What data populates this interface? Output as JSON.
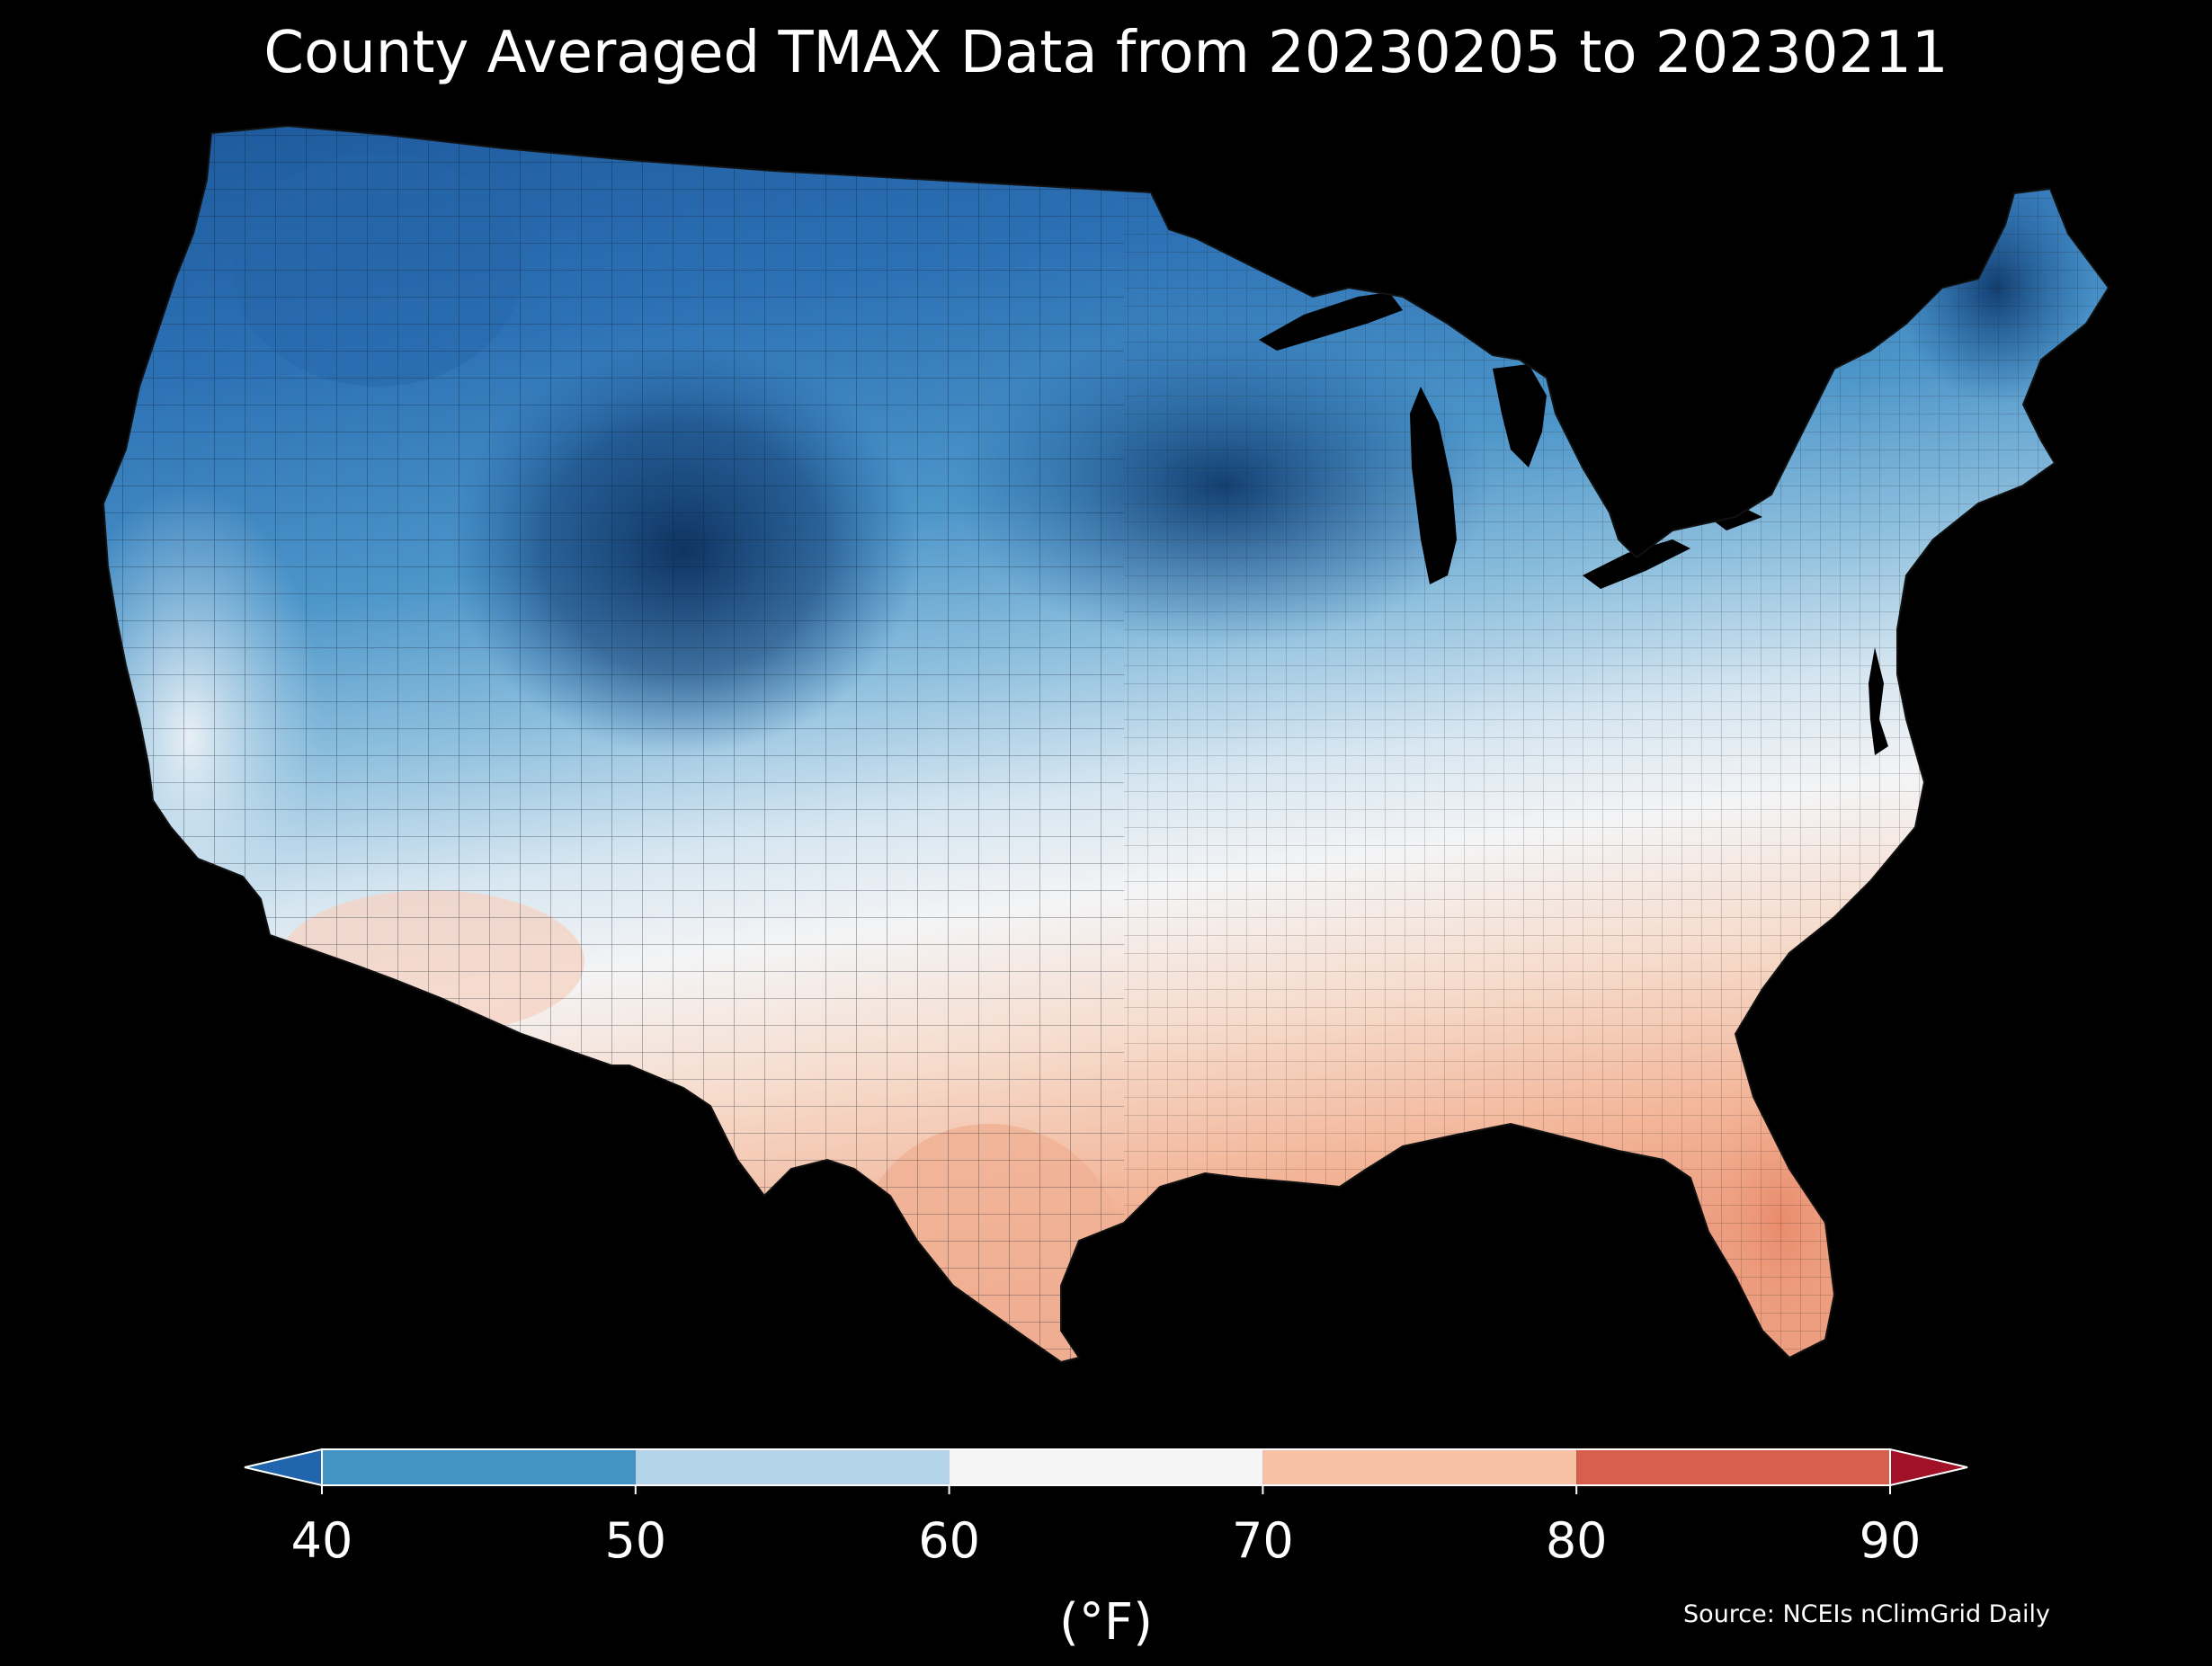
{
  "title": "County Averaged TMAX Data from 20230205 to 20230211",
  "source": "Source: NCEIs nClimGrid Daily",
  "colorbar": {
    "unit": "(°F)",
    "ticks": [
      "40",
      "50",
      "60",
      "70",
      "80",
      "90"
    ],
    "bins": [
      {
        "range": "<40",
        "color": "#2166ac"
      },
      {
        "range": "40-50",
        "color": "#4393c3"
      },
      {
        "range": "50-60",
        "color": "#b3d4e8"
      },
      {
        "range": "60-70",
        "color": "#f5f5f5"
      },
      {
        "range": "70-80",
        "color": "#f7c1a6"
      },
      {
        "range": "80-90",
        "color": "#d6604d"
      },
      {
        "range": ">90",
        "color": "#a11228"
      }
    ]
  },
  "map": {
    "region": "Contiguous United States",
    "background": "#000000",
    "gradient_colors": [
      "#0d3b6e",
      "#1f62a8",
      "#4a94c9",
      "#9ec9e2",
      "#e4eef5",
      "#f6e6de",
      "#f6c6ae",
      "#eea285"
    ]
  }
}
